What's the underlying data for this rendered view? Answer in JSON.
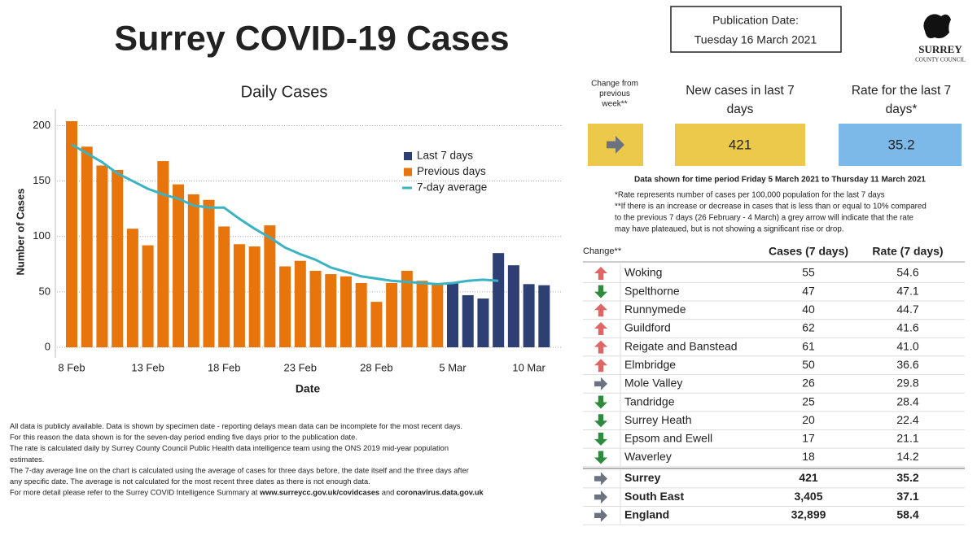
{
  "header": {
    "title": "Surrey COVID-19 Cases",
    "publication_label": "Publication Date:",
    "publication_date": "Tuesday 16 March 2021",
    "logo_name": "SURREY",
    "logo_sub": "COUNTY COUNCIL"
  },
  "chart_data": {
    "type": "bar",
    "title": "Daily Cases",
    "x_label": "Date",
    "y_label": "Number of Cases",
    "categories": [
      "8 Feb",
      null,
      null,
      null,
      null,
      "13 Feb",
      null,
      null,
      null,
      null,
      "18 Feb",
      null,
      null,
      null,
      null,
      "23 Feb",
      null,
      null,
      null,
      null,
      "28 Feb",
      null,
      null,
      null,
      null,
      "5 Mar",
      null,
      null,
      null,
      null,
      "10 Mar",
      null
    ],
    "series": [
      {
        "name": "Last 7 days",
        "color": "#2e3f73",
        "values": [
          null,
          null,
          null,
          null,
          null,
          null,
          null,
          null,
          null,
          null,
          null,
          null,
          null,
          null,
          null,
          null,
          null,
          null,
          null,
          null,
          null,
          null,
          null,
          null,
          null,
          58,
          47,
          44,
          85,
          74,
          57,
          56
        ]
      },
      {
        "name": "Previous days",
        "color": "#e8740c",
        "values": [
          204,
          181,
          164,
          160,
          107,
          92,
          168,
          147,
          138,
          133,
          109,
          93,
          91,
          110,
          73,
          78,
          69,
          66,
          64,
          58,
          41,
          58,
          69,
          60,
          57,
          null,
          null,
          null,
          null,
          null,
          null,
          null
        ]
      },
      {
        "name": "7-day average",
        "color": "#3bb3c3",
        "line": true,
        "values": [
          183,
          175,
          167,
          157,
          150,
          143,
          138,
          134,
          128,
          126,
          126,
          116,
          107,
          99,
          90,
          84,
          79,
          72,
          68,
          64,
          62,
          60,
          59,
          58,
          57,
          58,
          60,
          61,
          60,
          null,
          null,
          null
        ]
      }
    ],
    "ylim": [
      0,
      215
    ],
    "yticks": [
      0,
      50,
      100,
      150,
      200
    ],
    "grid": true,
    "legend": "top-right"
  },
  "kpi": {
    "change_label": [
      "Change from",
      "previous",
      "week**"
    ],
    "change": "flat",
    "cases_label": [
      "New cases in last 7",
      "days"
    ],
    "cases": 421,
    "rate_label": [
      "Rate for the last 7",
      "days*"
    ],
    "rate": 35.2,
    "period": "Data shown for time period Friday 5 March 2021 to Thursday 11 March 2021",
    "notes": [
      "*Rate represents number of cases per 100,000 population for the last 7 days",
      "**If there is an increase or decrease in cases that is less than or equal to 10% compared",
      "to the previous 7 days (26 February - 4 March) a grey arrow will indicate that the rate",
      "may have plateaued, but is not showing a significant rise or drop."
    ]
  },
  "table": {
    "headers": [
      "Change**",
      "Cases  (7 days)",
      "Rate (7 days)"
    ],
    "rows": [
      {
        "change": "up",
        "name": "Woking",
        "cases": "55",
        "rate": "54.6"
      },
      {
        "change": "down",
        "name": "Spelthorne",
        "cases": "47",
        "rate": "47.1"
      },
      {
        "change": "up",
        "name": "Runnymede",
        "cases": "40",
        "rate": "44.7"
      },
      {
        "change": "up",
        "name": "Guildford",
        "cases": "62",
        "rate": "41.6"
      },
      {
        "change": "up",
        "name": "Reigate and Banstead",
        "cases": "61",
        "rate": "41.0"
      },
      {
        "change": "up",
        "name": "Elmbridge",
        "cases": "50",
        "rate": "36.6"
      },
      {
        "change": "flat",
        "name": "Mole Valley",
        "cases": "26",
        "rate": "29.8"
      },
      {
        "change": "down",
        "name": "Tandridge",
        "cases": "25",
        "rate": "28.4"
      },
      {
        "change": "down",
        "name": "Surrey Heath",
        "cases": "20",
        "rate": "22.4"
      },
      {
        "change": "down",
        "name": "Epsom and Ewell",
        "cases": "17",
        "rate": "21.1"
      },
      {
        "change": "down",
        "name": "Waverley",
        "cases": "18",
        "rate": "14.2"
      }
    ],
    "summary_rows": [
      {
        "change": "flat",
        "name": "Surrey",
        "cases": "421",
        "rate": "35.2"
      },
      {
        "change": "flat",
        "name": "South East",
        "cases": "3,405",
        "rate": "37.1"
      },
      {
        "change": "flat",
        "name": "England",
        "cases": "32,899",
        "rate": "58.4"
      }
    ]
  },
  "footer": [
    [
      "All data is publicly available. Data is shown by specimen date - reporting delays mean data can be incomplete for the most recent days."
    ],
    [
      "For this reason the data shown is for the seven-day period ending five days prior to the publication date."
    ],
    [
      "The rate is calculated daily by Surrey County Council Public Health data intelligence team using the ONS 2019 mid-year population"
    ],
    [
      "estimates."
    ],
    [
      "The 7-day average line on the chart is calculated using the average of cases for three days before, the date itself and the three days after"
    ],
    [
      "any specific date. The average is not calculated for the most recent three dates as there is not enough data."
    ],
    [
      "For more detail please refer to the Surrey COVID Intelligence Summary at ",
      "www.surreycc.gov.uk/covidcases",
      " and ",
      "coronavirus.data.gov.uk"
    ]
  ]
}
